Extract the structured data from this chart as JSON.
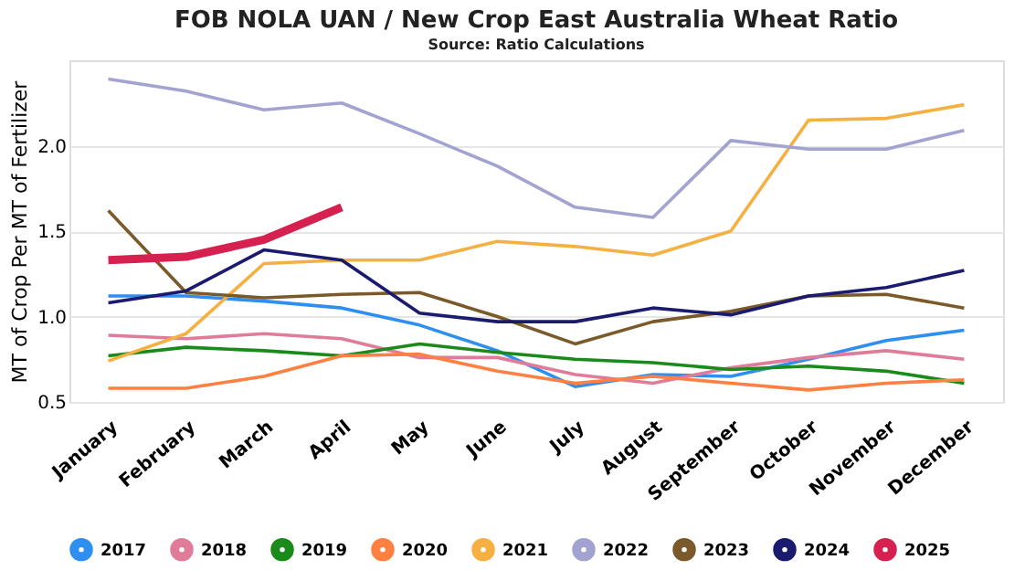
{
  "chart_data": {
    "type": "line",
    "title": "FOB NOLA UAN / New Crop East Australia Wheat Ratio",
    "subtitle": "Source: Ratio Calculations",
    "ylabel": "MT of Crop Per MT of Fertilizer",
    "categories": [
      "January",
      "February",
      "March",
      "April",
      "May",
      "June",
      "July",
      "August",
      "September",
      "October",
      "November",
      "December"
    ],
    "ylim": [
      0.5,
      2.5
    ],
    "yticks": [
      0.5,
      {
        "value": 1,
        "label": "1.0"
      },
      1.5,
      {
        "value": 2,
        "label": "2.0"
      }
    ],
    "grid": "y",
    "legend": "bottom",
    "marker": "none",
    "line_style": "solid",
    "series": [
      {
        "name": "2017",
        "color": "#2e8ff0",
        "values": [
          1.12,
          1.12,
          1.09,
          1.05,
          0.95,
          0.8,
          0.59,
          0.66,
          0.65,
          0.75,
          0.86,
          0.92
        ]
      },
      {
        "name": "2018",
        "color": "#e07b9a",
        "values": [
          0.89,
          0.87,
          0.9,
          0.87,
          0.76,
          0.76,
          0.66,
          0.61,
          0.7,
          0.76,
          0.8,
          0.75
        ]
      },
      {
        "name": "2019",
        "color": "#1a8a1a",
        "values": [
          0.77,
          0.82,
          0.8,
          0.77,
          0.84,
          0.79,
          0.75,
          0.73,
          0.69,
          0.71,
          0.68,
          0.61
        ]
      },
      {
        "name": "2020",
        "color": "#ff8040",
        "values": [
          0.58,
          0.58,
          0.65,
          0.77,
          0.78,
          0.68,
          0.61,
          0.65,
          0.61,
          0.57,
          0.61,
          0.63
        ]
      },
      {
        "name": "2021",
        "color": "#f5b041",
        "values": [
          0.74,
          0.9,
          1.31,
          1.33,
          1.33,
          1.44,
          1.41,
          1.36,
          1.5,
          2.15,
          2.16,
          2.24
        ]
      },
      {
        "name": "2022",
        "color": "#a3a3d1",
        "values": [
          2.39,
          2.32,
          2.21,
          2.25,
          2.07,
          1.88,
          1.64,
          1.58,
          2.03,
          1.98,
          1.98,
          2.09
        ]
      },
      {
        "name": "2023",
        "color": "#7a5a2a",
        "values": [
          1.62,
          1.14,
          1.11,
          1.13,
          1.14,
          1.0,
          0.84,
          0.97,
          1.03,
          1.12,
          1.13,
          1.05
        ]
      },
      {
        "name": "2024",
        "color": "#1a1a6e",
        "values": [
          1.08,
          1.15,
          1.39,
          1.33,
          1.02,
          0.97,
          0.97,
          1.05,
          1.01,
          1.12,
          1.17,
          1.27
        ]
      },
      {
        "name": "2025",
        "color": "#d62050",
        "values": [
          1.33,
          1.35,
          1.45,
          1.64,
          null,
          null,
          null,
          null,
          null,
          null,
          null,
          null
        ]
      }
    ]
  }
}
